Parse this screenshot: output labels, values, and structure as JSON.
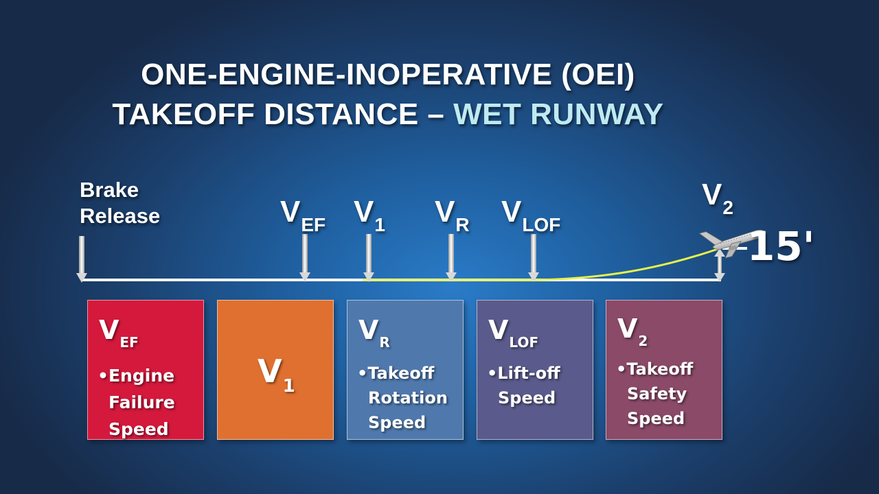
{
  "title": {
    "line1": "ONE-ENGINE-INOPERATIVE (OEI)",
    "line2_prefix": "TAKEOFF DISTANCE –",
    "line2_accent": "WET RUNWAY"
  },
  "markers": {
    "brake_release": [
      "Brake",
      "Release"
    ],
    "vef": {
      "main": "V",
      "sub": "EF"
    },
    "v1": {
      "main": "V",
      "sub": "1"
    },
    "vr": {
      "main": "V",
      "sub": "R"
    },
    "vlof": {
      "main": "V",
      "sub": "LOF"
    },
    "v2": {
      "main": "V",
      "sub": "2"
    },
    "height": "15'"
  },
  "boxes": [
    {
      "main": "V",
      "sub": "EF",
      "lines": [
        "•Engine",
        "Failure",
        "Speed"
      ],
      "color": "#d4193c"
    },
    {
      "main": "V",
      "sub": "1",
      "lines": [],
      "color": "#e07030"
    },
    {
      "main": "V",
      "sub": "R",
      "lines": [
        "•Takeoff",
        "Rotation",
        "Speed"
      ],
      "color": "#4f79ad"
    },
    {
      "main": "V",
      "sub": "LOF",
      "lines": [
        "•Lift-off",
        "Speed"
      ],
      "color": "#5a5a8c"
    },
    {
      "main": "V",
      "sub": "2",
      "lines": [
        "•Takeoff",
        "Safety",
        "Speed"
      ],
      "color": "#8a4a68"
    }
  ],
  "colors": {
    "runway_line": "#ffffff",
    "flight_path": "#e8f04a",
    "title_accent": "#bfeaf2"
  }
}
